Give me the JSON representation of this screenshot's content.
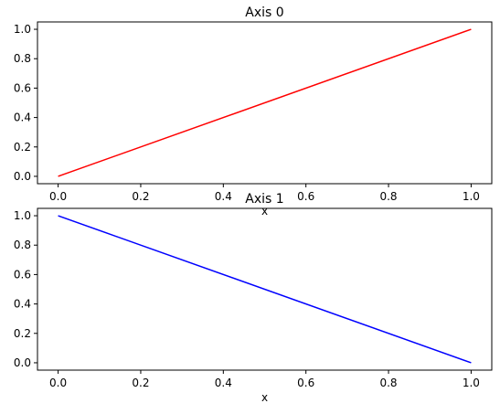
{
  "chart_data": [
    {
      "type": "line",
      "title": "Axis 0",
      "xlabel": "x",
      "ylabel": "",
      "xlim": [
        -0.05,
        1.05
      ],
      "ylim": [
        -0.05,
        1.05
      ],
      "xticks": [
        0.0,
        0.2,
        0.4,
        0.6,
        0.8,
        1.0
      ],
      "xtick_labels": [
        "0.0",
        "0.2",
        "0.4",
        "0.6",
        "0.8",
        "1.0"
      ],
      "yticks": [
        0.0,
        0.2,
        0.4,
        0.6,
        0.8,
        1.0
      ],
      "ytick_labels": [
        "0.0",
        "0.2",
        "0.4",
        "0.6",
        "0.8",
        "1.0"
      ],
      "grid": false,
      "series": [
        {
          "x": [
            0.0,
            1.0
          ],
          "y": [
            0.0,
            1.0
          ],
          "color": "#ff0000"
        }
      ]
    },
    {
      "type": "line",
      "title": "Axis 1",
      "xlabel": "x",
      "ylabel": "",
      "xlim": [
        -0.05,
        1.05
      ],
      "ylim": [
        -0.05,
        1.05
      ],
      "xticks": [
        0.0,
        0.2,
        0.4,
        0.6,
        0.8,
        1.0
      ],
      "xtick_labels": [
        "0.0",
        "0.2",
        "0.4",
        "0.6",
        "0.8",
        "1.0"
      ],
      "yticks": [
        0.0,
        0.2,
        0.4,
        0.6,
        0.8,
        1.0
      ],
      "ytick_labels": [
        "0.0",
        "0.2",
        "0.4",
        "0.6",
        "0.8",
        "1.0"
      ],
      "grid": false,
      "series": [
        {
          "x": [
            0.0,
            1.0
          ],
          "y": [
            1.0,
            0.0
          ],
          "color": "#0000ff"
        }
      ]
    }
  ]
}
